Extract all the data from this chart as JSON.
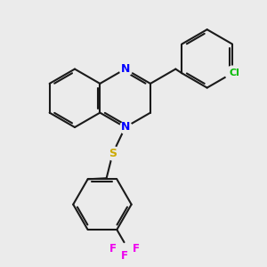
{
  "background_color": "#ebebeb",
  "bond_color": "#1a1a1a",
  "N_color": "#0000ff",
  "S_color": "#ccaa00",
  "Cl_color": "#00bb00",
  "F_color": "#ee00ee",
  "line_width": 1.5,
  "dbo": 0.055,
  "figsize": [
    3.0,
    3.0
  ],
  "dpi": 100,
  "xlim": [
    -2.8,
    3.2
  ],
  "ylim": [
    -3.5,
    2.8
  ]
}
